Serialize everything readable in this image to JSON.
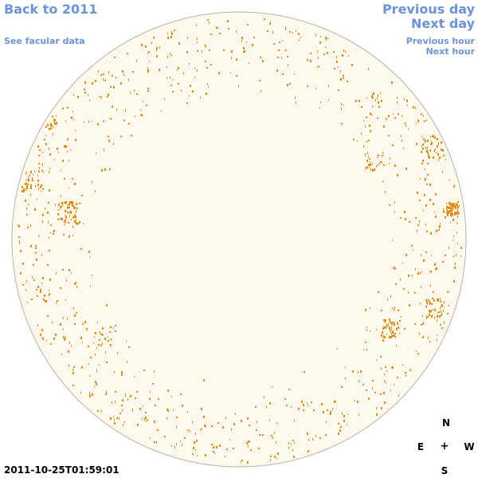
{
  "nav": {
    "back_label": "Back to 2011",
    "facular_label": "See facular data",
    "previous_day_label": "Previous day",
    "next_day_label": "Next day",
    "previous_hour_label": "Previous hour",
    "next_hour_label": "Next hour"
  },
  "timestamp": "2011-10-25T01:59:01",
  "compass": {
    "north": "N",
    "south": "S",
    "east": "E",
    "west": "W",
    "center": "+"
  },
  "colors": {
    "link": "#6a93d8",
    "disk_fill": "#fef9ee",
    "disk_border": "#b8b2a6",
    "facula": "#e88a0c"
  }
}
